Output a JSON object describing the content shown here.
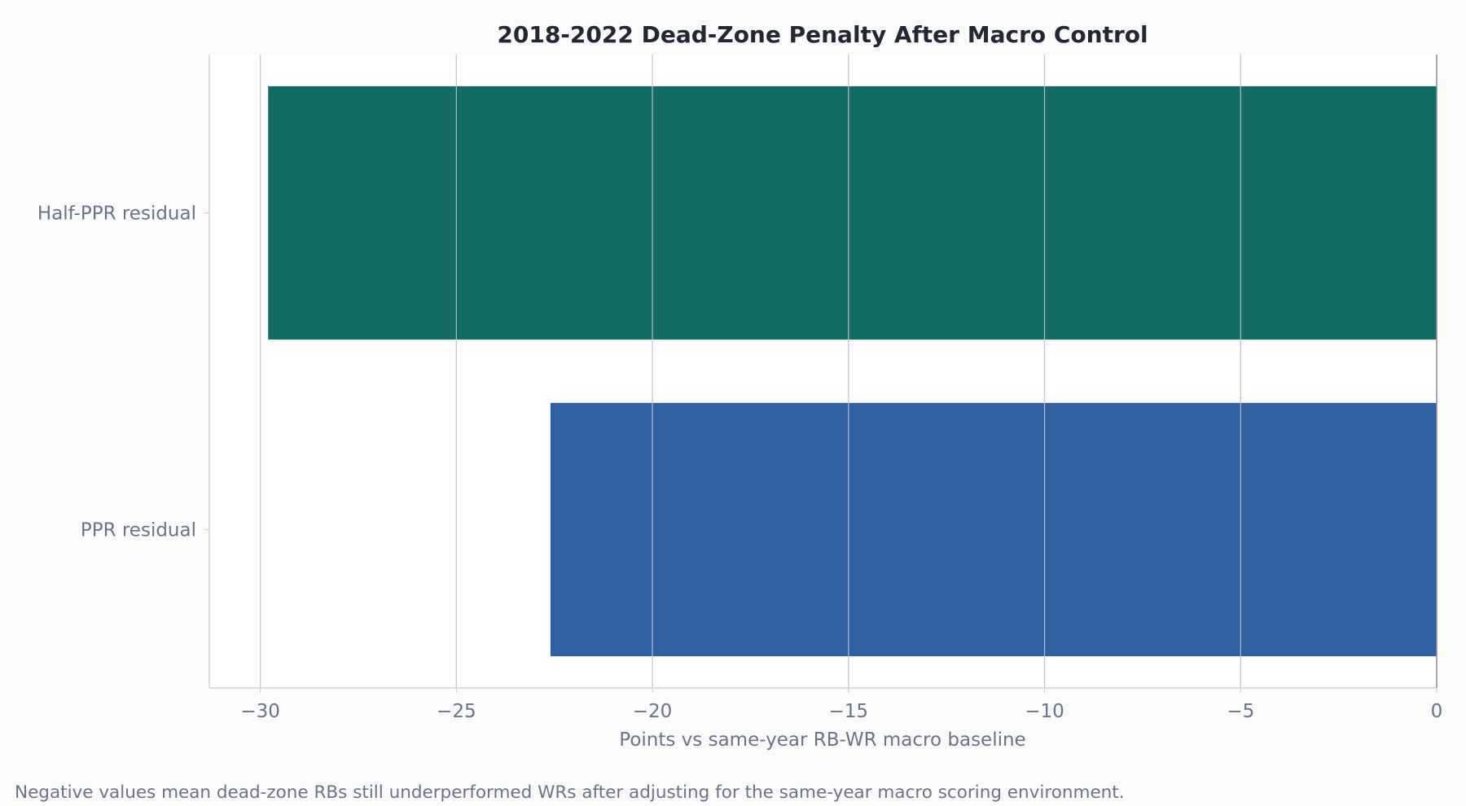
{
  "chart_data": {
    "type": "bar",
    "orientation": "horizontal",
    "title": "2018-2022 Dead-Zone Penalty After Macro Control",
    "xlabel": "Points vs same-year RB-WR macro baseline",
    "ylabel": "",
    "categories": [
      "Half-PPR residual",
      "PPR residual"
    ],
    "values": [
      -29.8,
      -22.6
    ],
    "bar_colors": [
      "#126b64",
      "#3160a0"
    ],
    "xlim": [
      -31.3,
      0
    ],
    "xticks": [
      -30,
      -25,
      -20,
      -15,
      -10,
      -5,
      0
    ],
    "xtick_labels": [
      "−30",
      "−25",
      "−20",
      "−15",
      "−10",
      "−5",
      "0"
    ],
    "grid": "vertical",
    "caption": "Negative values mean dead-zone RBs still underperformed WRs after adjusting for the same-year macro scoring environment."
  },
  "colors": {
    "background": "#fbfbfb",
    "plot_background": "#ffffff",
    "grid": "#c9cdd6",
    "axis": "#cfd3df",
    "zero_line": "#858b99",
    "text": "#6b7388",
    "title": "#222733"
  }
}
